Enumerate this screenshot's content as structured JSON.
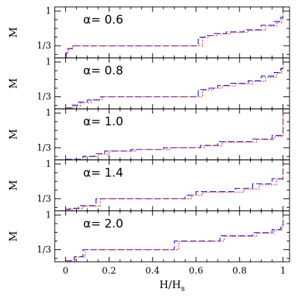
{
  "chart_data": {
    "type": "line",
    "xlabel": "H/H",
    "xlabel_subscript": "s",
    "ylabel": "M",
    "xlim": [
      -0.05,
      1.03
    ],
    "ylim": [
      0.1,
      1.08
    ],
    "x_ticks": [
      {
        "value": 0,
        "label": "0"
      },
      {
        "value": 0.2,
        "label": "0.2"
      },
      {
        "value": 0.4,
        "label": "0.4"
      },
      {
        "value": 0.6,
        "label": "0.6"
      },
      {
        "value": 0.8,
        "label": "0.8"
      },
      {
        "value": 1.0,
        "label": "1"
      }
    ],
    "y_ticks": [
      {
        "value": 0.3333,
        "label": "1/3"
      },
      {
        "value": 1.0,
        "label": "1"
      }
    ],
    "series_styles": [
      {
        "id": "dashed",
        "color": "#1a1adc",
        "dash": "9,4"
      },
      {
        "id": "dotted",
        "color": "#e03030",
        "dash": "2,2"
      }
    ],
    "panels": [
      {
        "alpha_label": "α=  0.6",
        "dashed": [
          [
            0,
            0.13
          ],
          [
            0.003,
            0.2
          ],
          [
            0.01,
            0.28
          ],
          [
            0.03,
            0.3333
          ],
          [
            0.6,
            0.3333
          ],
          [
            0.61,
            0.5
          ],
          [
            0.64,
            0.53
          ],
          [
            0.68,
            0.57
          ],
          [
            0.74,
            0.6
          ],
          [
            0.82,
            0.64
          ],
          [
            0.9,
            0.73
          ],
          [
            0.96,
            0.8
          ],
          [
            0.99,
            0.88
          ],
          [
            1.0,
            1.0
          ]
        ],
        "dotted": [
          [
            0,
            0.12
          ],
          [
            0.004,
            0.2
          ],
          [
            0.012,
            0.27
          ],
          [
            0.032,
            0.3333
          ],
          [
            0.62,
            0.3333
          ],
          [
            0.63,
            0.49
          ],
          [
            0.66,
            0.53
          ],
          [
            0.7,
            0.56
          ],
          [
            0.76,
            0.59
          ],
          [
            0.84,
            0.63
          ],
          [
            0.92,
            0.71
          ],
          [
            0.97,
            0.78
          ],
          [
            0.995,
            0.86
          ],
          [
            1.0,
            1.0
          ]
        ]
      },
      {
        "alpha_label": "α=  0.8",
        "dashed": [
          [
            0,
            0.12
          ],
          [
            0.03,
            0.17
          ],
          [
            0.06,
            0.23
          ],
          [
            0.1,
            0.27
          ],
          [
            0.16,
            0.3333
          ],
          [
            0.6,
            0.3333
          ],
          [
            0.61,
            0.47
          ],
          [
            0.66,
            0.5
          ],
          [
            0.7,
            0.55
          ],
          [
            0.76,
            0.59
          ],
          [
            0.84,
            0.64
          ],
          [
            0.9,
            0.73
          ],
          [
            0.96,
            0.8
          ],
          [
            0.99,
            0.88
          ],
          [
            1.0,
            1.0
          ]
        ],
        "dotted": [
          [
            0,
            0.11
          ],
          [
            0.035,
            0.16
          ],
          [
            0.07,
            0.22
          ],
          [
            0.12,
            0.28
          ],
          [
            0.17,
            0.3333
          ],
          [
            0.62,
            0.3333
          ],
          [
            0.63,
            0.46
          ],
          [
            0.68,
            0.5
          ],
          [
            0.72,
            0.54
          ],
          [
            0.78,
            0.58
          ],
          [
            0.86,
            0.63
          ],
          [
            0.92,
            0.71
          ],
          [
            0.97,
            0.79
          ],
          [
            0.995,
            0.87
          ],
          [
            1.0,
            1.0
          ]
        ]
      },
      {
        "alpha_label": "α=  1.0",
        "dashed": [
          [
            0,
            0.11
          ],
          [
            0.08,
            0.17
          ],
          [
            0.14,
            0.22
          ],
          [
            0.18,
            0.27
          ],
          [
            0.3,
            0.3
          ],
          [
            0.45,
            0.3333
          ],
          [
            0.62,
            0.38
          ],
          [
            0.7,
            0.45
          ],
          [
            0.86,
            0.5
          ],
          [
            0.95,
            0.57
          ],
          [
            1.0,
            1.0
          ]
        ],
        "dotted": [
          [
            0,
            0.1
          ],
          [
            0.09,
            0.16
          ],
          [
            0.15,
            0.21
          ],
          [
            0.2,
            0.27
          ],
          [
            0.32,
            0.3
          ],
          [
            0.48,
            0.3333
          ],
          [
            0.64,
            0.37
          ],
          [
            0.72,
            0.44
          ],
          [
            0.88,
            0.49
          ],
          [
            0.96,
            0.55
          ],
          [
            1.0,
            1.0
          ]
        ]
      },
      {
        "alpha_label": "α=  1.4",
        "dashed": [
          [
            0,
            0.13
          ],
          [
            0.02,
            0.15
          ],
          [
            0.06,
            0.2
          ],
          [
            0.14,
            0.3333
          ],
          [
            0.46,
            0.3333
          ],
          [
            0.55,
            0.4
          ],
          [
            0.6,
            0.47
          ],
          [
            0.78,
            0.53
          ],
          [
            0.86,
            0.62
          ],
          [
            0.95,
            0.72
          ],
          [
            1.0,
            1.0
          ]
        ],
        "dotted": [
          [
            0,
            0.12
          ],
          [
            0.03,
            0.14
          ],
          [
            0.08,
            0.19
          ],
          [
            0.16,
            0.3333
          ],
          [
            0.5,
            0.3333
          ],
          [
            0.58,
            0.4
          ],
          [
            0.63,
            0.46
          ],
          [
            0.82,
            0.52
          ],
          [
            0.89,
            0.6
          ],
          [
            0.97,
            0.7
          ],
          [
            1.0,
            1.0
          ]
        ]
      },
      {
        "alpha_label": "α=  2.0",
        "dashed": [
          [
            0,
            0.12
          ],
          [
            0.04,
            0.2
          ],
          [
            0.08,
            0.3333
          ],
          [
            0.44,
            0.3333
          ],
          [
            0.5,
            0.5
          ],
          [
            0.65,
            0.5
          ],
          [
            0.71,
            0.6
          ],
          [
            0.86,
            0.66
          ],
          [
            0.95,
            0.72
          ],
          [
            0.99,
            0.8
          ],
          [
            1.0,
            1.0
          ]
        ],
        "dotted": [
          [
            0,
            0.11
          ],
          [
            0.045,
            0.19
          ],
          [
            0.09,
            0.3333
          ],
          [
            0.46,
            0.3333
          ],
          [
            0.52,
            0.49
          ],
          [
            0.67,
            0.5
          ],
          [
            0.73,
            0.59
          ],
          [
            0.88,
            0.65
          ],
          [
            0.96,
            0.71
          ],
          [
            0.995,
            0.79
          ],
          [
            1.0,
            1.0
          ]
        ]
      }
    ]
  }
}
